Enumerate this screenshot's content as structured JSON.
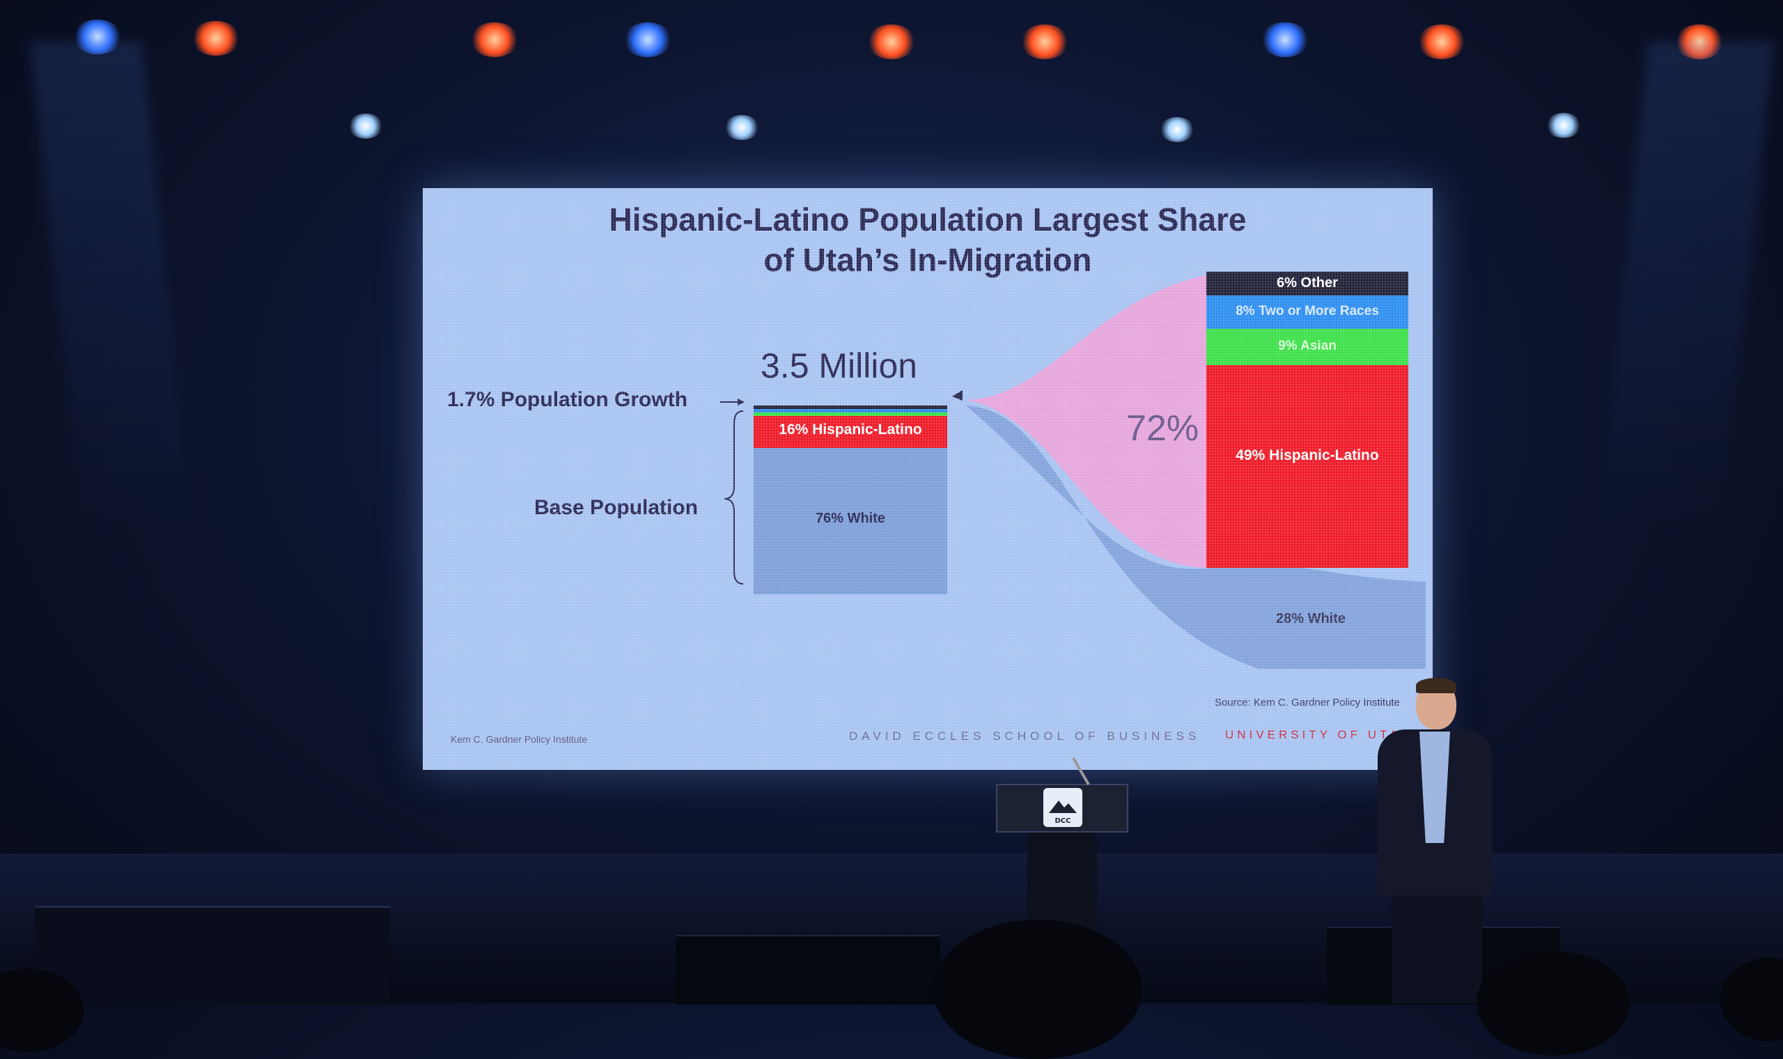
{
  "slide": {
    "title_line1": "Hispanic-Latino Population Largest Share",
    "title_line2": "of Utah’s In-Migration",
    "total_population": "3.5 Million",
    "growth_label": "1.7% Population Growth",
    "base_label": "Base Population",
    "inmigration_share": "72%",
    "left_segments": {
      "hispanic": "16% Hispanic-Latino",
      "white": "76% White"
    },
    "right_segments": {
      "other": "6% Other",
      "two_or_more": "8% Two or More Races",
      "asian": "9% Asian",
      "hispanic": "49% Hispanic-Latino",
      "white": "28% White"
    },
    "source": "Source: Kem C. Gardner Policy Institute",
    "footer_institute": "Kem C. Gardner Policy Institute",
    "footer_school": "DAVID ECCLES SCHOOL OF BUSINESS",
    "footer_university": "UNIVERSITY OF UTAH",
    "colors": {
      "hispanic": "#ee1c2a",
      "white_band": "#7e9fd8",
      "asian": "#3ee04a",
      "two_or_more": "#2f8ff0",
      "other": "#23233a",
      "pink_flow": "#e6a6dc",
      "title": "#2c2a55"
    }
  },
  "podium": {
    "logo_text": "DCC"
  }
}
